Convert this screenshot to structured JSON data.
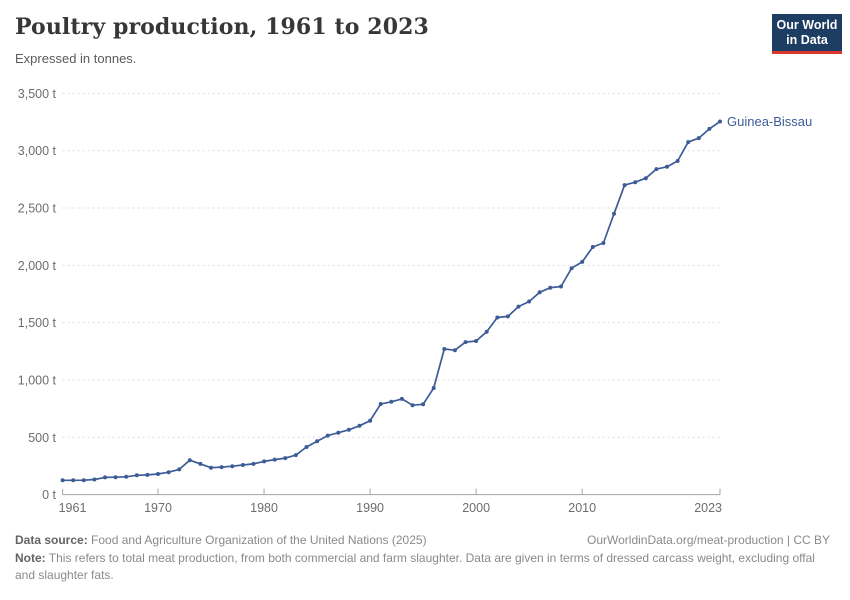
{
  "header": {
    "title": "Poultry production, 1961 to 2023",
    "subtitle": "Expressed in tonnes.",
    "logo": {
      "line1": "Our World",
      "line2": "in Data",
      "bg_color": "#1d3d63",
      "accent_color": "#dc352c"
    }
  },
  "chart_data": {
    "type": "line",
    "title": "Poultry production, 1961 to 2023",
    "subtitle": "Expressed in tonnes.",
    "unit": "t",
    "grid": "dashed horizontal gridlines",
    "legend_position": "end-of-line label",
    "xlim": [
      1961,
      2023
    ],
    "ylim": [
      0,
      3500
    ],
    "xticks": [
      1961,
      1970,
      1980,
      1990,
      2000,
      2010,
      2023
    ],
    "xtick_labels": [
      "1961",
      "1970",
      "1980",
      "1990",
      "2000",
      "2010",
      "2023"
    ],
    "ytick_values": [
      0,
      500,
      1000,
      1500,
      2000,
      2500,
      3000,
      3500
    ],
    "ytick_labels": [
      "0 t",
      "500 t",
      "1,000 t",
      "1,500 t",
      "2,000 t",
      "2,500 t",
      "3,000 t",
      "3,500 t"
    ],
    "series": [
      {
        "name": "Guinea-Bissau",
        "color": "#3d5c96",
        "x": [
          1961,
          1962,
          1963,
          1964,
          1965,
          1966,
          1967,
          1968,
          1969,
          1970,
          1971,
          1972,
          1973,
          1974,
          1975,
          1976,
          1977,
          1978,
          1979,
          1980,
          1981,
          1982,
          1983,
          1984,
          1985,
          1986,
          1987,
          1988,
          1989,
          1990,
          1991,
          1992,
          1993,
          1994,
          1995,
          1996,
          1997,
          1998,
          1999,
          2000,
          2001,
          2002,
          2003,
          2004,
          2005,
          2006,
          2007,
          2008,
          2009,
          2010,
          2011,
          2012,
          2013,
          2014,
          2015,
          2016,
          2017,
          2018,
          2019,
          2020,
          2021,
          2022,
          2023
        ],
        "values": [
          125,
          125,
          126,
          132,
          150,
          152,
          155,
          168,
          172,
          180,
          195,
          220,
          300,
          268,
          235,
          240,
          248,
          258,
          268,
          290,
          305,
          318,
          345,
          415,
          465,
          515,
          540,
          565,
          600,
          645,
          790,
          810,
          835,
          780,
          788,
          930,
          1270,
          1260,
          1330,
          1340,
          1420,
          1545,
          1555,
          1640,
          1685,
          1765,
          1805,
          1815,
          1975,
          2030,
          2160,
          2195,
          2450,
          2700,
          2725,
          2760,
          2840,
          2860,
          2910,
          3075,
          3110,
          3190,
          3255
        ]
      }
    ]
  },
  "footer": {
    "datasource_label": "Data source:",
    "datasource_text": " Food and Agriculture Organization of the United Nations (2025)",
    "link_text": "OurWorldinData.org/meat-production | CC BY",
    "note_label": "Note:",
    "note_text": " This refers to total meat production, from both commercial and farm slaughter. Data are given in terms of dressed carcass weight, excluding offal and slaughter fats."
  }
}
